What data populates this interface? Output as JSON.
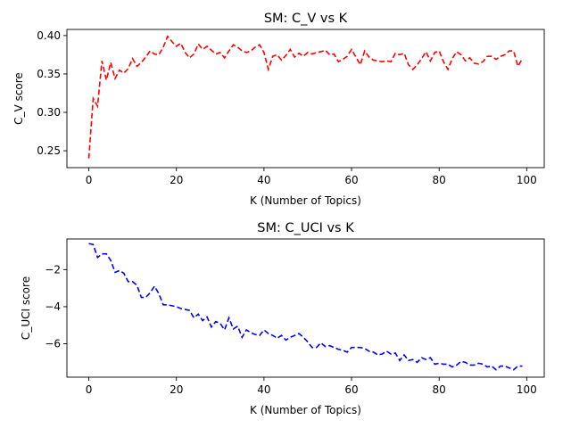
{
  "chart_data": [
    {
      "type": "line",
      "title": "SM: C_V vs K",
      "xlabel": "K (Number of Topics)",
      "ylabel": "C_V score",
      "xlim": [
        -5,
        104
      ],
      "ylim": [
        0.228,
        0.408
      ],
      "xticks": [
        0,
        20,
        40,
        60,
        80,
        100
      ],
      "yticks": [
        0.25,
        0.3,
        0.35,
        0.4
      ],
      "ytick_labels": [
        "0.25",
        "0.30",
        "0.35",
        "0.40"
      ],
      "grid": false,
      "series": [
        {
          "color": "#ff0000",
          "linestyle": "dashed",
          "x": [
            0,
            1,
            2,
            3,
            4,
            5,
            6,
            7,
            8,
            9,
            10,
            11,
            12,
            13,
            14,
            15,
            16,
            17,
            18,
            19,
            20,
            21,
            22,
            23,
            24,
            25,
            26,
            27,
            28,
            29,
            30,
            31,
            32,
            33,
            34,
            35,
            36,
            37,
            38,
            39,
            40,
            41,
            42,
            43,
            44,
            45,
            46,
            47,
            48,
            49,
            50,
            51,
            52,
            53,
            54,
            55,
            56,
            57,
            58,
            59,
            60,
            61,
            62,
            63,
            64,
            65,
            66,
            67,
            68,
            69,
            70,
            71,
            72,
            73,
            74,
            75,
            76,
            77,
            78,
            79,
            80,
            81,
            82,
            83,
            84,
            85,
            86,
            87,
            88,
            89,
            90,
            91,
            92,
            93,
            94,
            95,
            96,
            97,
            98,
            99
          ],
          "values": [
            0.24,
            0.318,
            0.308,
            0.367,
            0.342,
            0.365,
            0.344,
            0.355,
            0.351,
            0.357,
            0.37,
            0.36,
            0.365,
            0.372,
            0.38,
            0.376,
            0.375,
            0.385,
            0.399,
            0.392,
            0.386,
            0.39,
            0.378,
            0.371,
            0.376,
            0.389,
            0.382,
            0.386,
            0.381,
            0.376,
            0.378,
            0.371,
            0.38,
            0.388,
            0.385,
            0.38,
            0.378,
            0.38,
            0.385,
            0.388,
            0.378,
            0.356,
            0.373,
            0.375,
            0.368,
            0.374,
            0.382,
            0.372,
            0.377,
            0.373,
            0.378,
            0.376,
            0.378,
            0.379,
            0.381,
            0.375,
            0.376,
            0.366,
            0.369,
            0.373,
            0.382,
            0.372,
            0.362,
            0.38,
            0.372,
            0.368,
            0.367,
            0.366,
            0.367,
            0.366,
            0.377,
            0.375,
            0.377,
            0.362,
            0.356,
            0.362,
            0.37,
            0.379,
            0.367,
            0.378,
            0.38,
            0.366,
            0.356,
            0.37,
            0.379,
            0.375,
            0.367,
            0.371,
            0.364,
            0.363,
            0.366,
            0.373,
            0.373,
            0.369,
            0.373,
            0.375,
            0.38,
            0.38,
            0.36,
            0.37
          ]
        }
      ]
    },
    {
      "type": "line",
      "title": "SM: C_UCI vs K",
      "xlabel": "K (Number of Topics)",
      "ylabel": "C_UCI score",
      "xlim": [
        -5,
        104
      ],
      "ylim": [
        -7.8,
        -0.35
      ],
      "xticks": [
        0,
        20,
        40,
        60,
        80,
        100
      ],
      "yticks": [
        -6,
        -4,
        -2
      ],
      "ytick_labels": [
        "−6",
        "−4",
        "−2"
      ],
      "grid": false,
      "series": [
        {
          "color": "#0000ff",
          "linestyle": "dashed",
          "x": [
            0,
            1,
            2,
            3,
            4,
            5,
            6,
            7,
            8,
            9,
            10,
            11,
            12,
            13,
            14,
            15,
            16,
            17,
            18,
            19,
            20,
            21,
            22,
            23,
            24,
            25,
            26,
            27,
            28,
            29,
            30,
            31,
            32,
            33,
            34,
            35,
            36,
            37,
            38,
            39,
            40,
            41,
            42,
            43,
            44,
            45,
            46,
            47,
            48,
            49,
            50,
            51,
            52,
            53,
            54,
            55,
            56,
            57,
            58,
            59,
            60,
            61,
            62,
            63,
            64,
            65,
            66,
            67,
            68,
            69,
            70,
            71,
            72,
            73,
            74,
            75,
            76,
            77,
            78,
            79,
            80,
            81,
            82,
            83,
            84,
            85,
            86,
            87,
            88,
            89,
            90,
            91,
            92,
            93,
            94,
            95,
            96,
            97,
            98,
            99
          ],
          "values": [
            -0.6,
            -0.65,
            -1.35,
            -1.15,
            -1.15,
            -1.5,
            -2.15,
            -2.05,
            -2.2,
            -2.65,
            -2.65,
            -2.85,
            -3.5,
            -3.5,
            -3.25,
            -2.9,
            -3.3,
            -3.9,
            -3.9,
            -3.95,
            -4.0,
            -4.1,
            -4.15,
            -4.2,
            -4.6,
            -4.4,
            -4.75,
            -4.55,
            -5.1,
            -4.8,
            -4.9,
            -5.25,
            -4.6,
            -5.2,
            -5.05,
            -5.65,
            -5.25,
            -5.4,
            -5.5,
            -5.55,
            -5.25,
            -5.45,
            -5.55,
            -5.7,
            -5.55,
            -5.8,
            -5.65,
            -5.55,
            -5.45,
            -5.65,
            -5.9,
            -6.2,
            -6.2,
            -5.95,
            -6.15,
            -6.1,
            -6.2,
            -6.3,
            -6.35,
            -6.45,
            -6.2,
            -6.2,
            -6.2,
            -6.25,
            -6.4,
            -6.45,
            -6.6,
            -6.55,
            -6.4,
            -6.55,
            -6.5,
            -6.9,
            -6.6,
            -6.9,
            -6.85,
            -7.0,
            -6.75,
            -6.85,
            -6.75,
            -7.1,
            -7.05,
            -7.1,
            -7.1,
            -7.25,
            -7.15,
            -6.95,
            -7.0,
            -7.15,
            -7.15,
            -7.05,
            -7.1,
            -7.25,
            -7.2,
            -7.4,
            -7.2,
            -7.2,
            -7.3,
            -7.4,
            -7.2,
            -7.2
          ]
        }
      ]
    }
  ]
}
